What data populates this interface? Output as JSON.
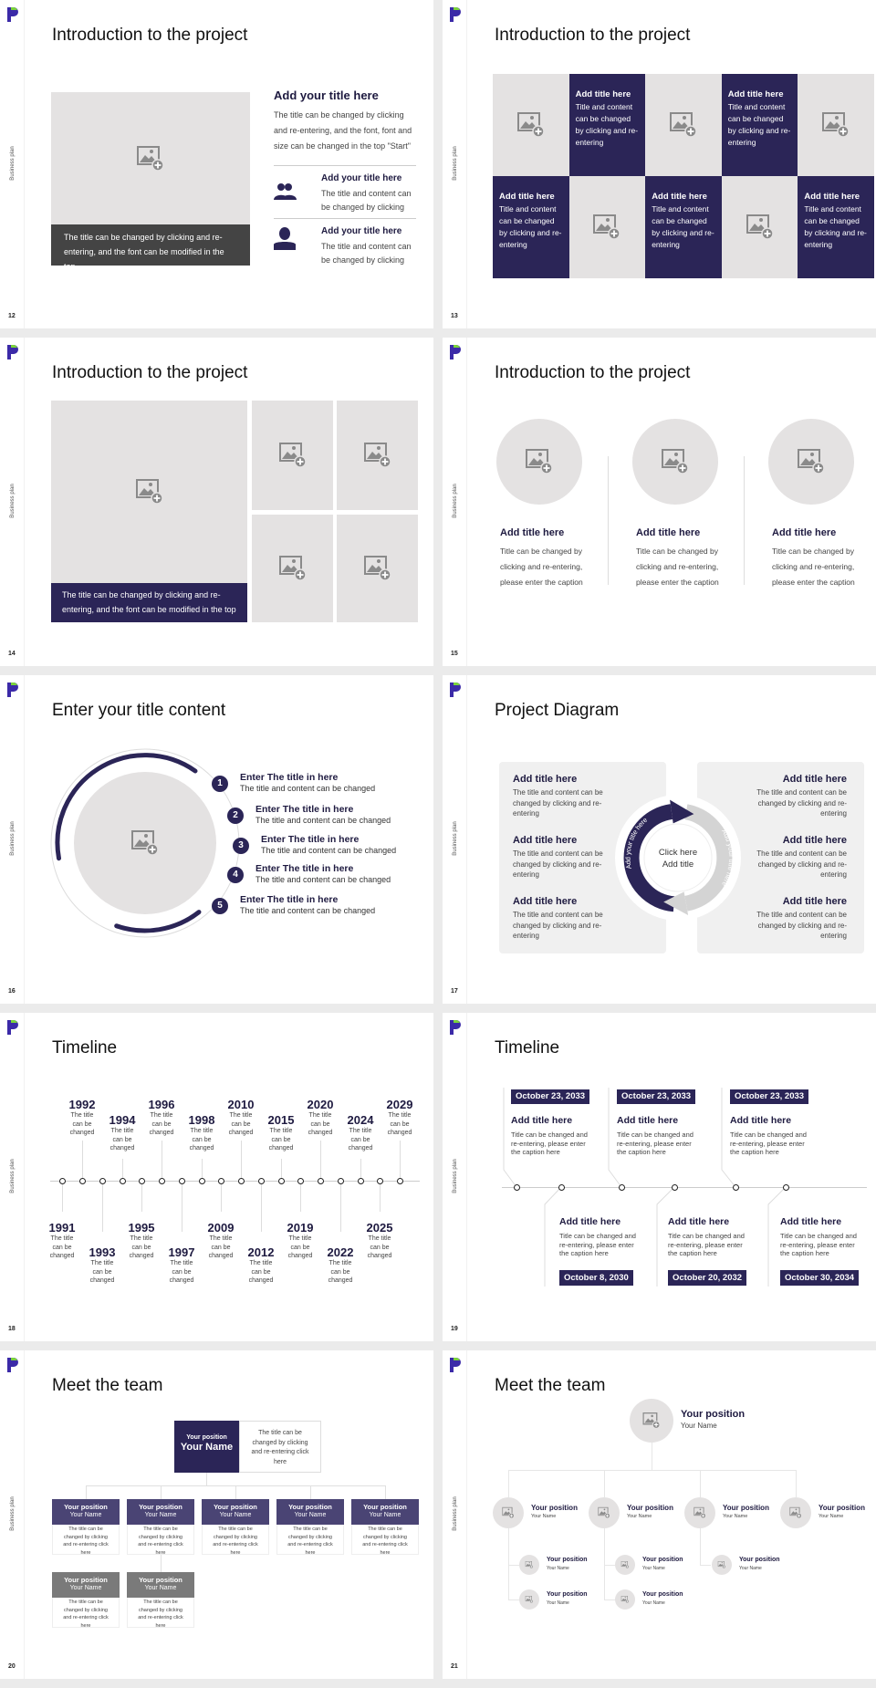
{
  "deck": {
    "side_label": "Business plan"
  },
  "colors": {
    "navy": "#2b2557",
    "placeholder_gray": "#e4e2e2",
    "card_header": "#4a4474",
    "card_header_gray": "#7a7a7a",
    "caption_dark": "#444444"
  },
  "s12": {
    "page": "12",
    "title": "Introduction to the project",
    "caption": "The title can be changed by clicking and re-entering, and the font can be modified in the top",
    "heading": "Add your title here",
    "body": "The title can be changed by clicking and re-entering, and the font, font and size can be changed in the top \"Start\"",
    "items": [
      {
        "icon": "users-icon",
        "title": "Add your title here",
        "text": "The title and content can be changed by clicking"
      },
      {
        "icon": "user-icon",
        "title": "Add your title here",
        "text": "The title and content can be changed by clicking"
      }
    ]
  },
  "s13": {
    "page": "13",
    "title": "Introduction to the project",
    "cards": [
      {
        "title": "Add title here",
        "text": "Title and content can be changed by clicking and re-entering"
      },
      {
        "title": "Add title here",
        "text": "Title and content can be changed by clicking and re-entering"
      },
      {
        "title": "Add title here",
        "text": "Title and content can be changed by clicking and re-entering"
      },
      {
        "title": "Add title here",
        "text": "Title and content can be changed by clicking and re-entering"
      },
      {
        "title": "Add title here",
        "text": "Title and content can be changed by clicking and re-entering"
      }
    ]
  },
  "s14": {
    "page": "14",
    "title": "Introduction to the project",
    "caption": "The title can be changed by clicking and re-entering, and the font can be modified in the top"
  },
  "s15": {
    "page": "15",
    "title": "Introduction to the project",
    "items": [
      {
        "title": "Add title here",
        "text": "Title can be changed by clicking and re-entering, please enter the caption"
      },
      {
        "title": "Add title here",
        "text": "Title can be changed by clicking and re-entering, please enter the caption"
      },
      {
        "title": "Add title here",
        "text": "Title can be changed by clicking and re-entering, please enter the caption"
      }
    ]
  },
  "s16": {
    "page": "16",
    "title": "Enter your title content",
    "items": [
      {
        "num": "1",
        "title": "Enter The title in here",
        "text": "The title and content can be changed"
      },
      {
        "num": "2",
        "title": "Enter The title in here",
        "text": "The title and content can be changed"
      },
      {
        "num": "3",
        "title": "Enter The title in here",
        "text": "The title and content can be changed"
      },
      {
        "num": "4",
        "title": "Enter The title in here",
        "text": "The title and content can be changed"
      },
      {
        "num": "5",
        "title": "Enter The title in here",
        "text": "The title and content can be changed"
      }
    ]
  },
  "s17": {
    "page": "17",
    "title": "Project Diagram",
    "center_line1": "Click here",
    "center_line2": "Add title",
    "arrow_left": "Add your title here",
    "arrow_right": "Add your title here",
    "left": [
      {
        "title": "Add title here",
        "text": "The title and content can be changed by clicking and re-entering"
      },
      {
        "title": "Add title here",
        "text": "The title and content can be changed by clicking and re-entering"
      },
      {
        "title": "Add title here",
        "text": "The title and content can be changed by clicking and re-entering"
      }
    ],
    "right": [
      {
        "title": "Add title here",
        "text": "The title and content can be changed by clicking and re-entering"
      },
      {
        "title": "Add title here",
        "text": "The title and content can be changed by clicking and re-entering"
      },
      {
        "title": "Add title here",
        "text": "The title and content can be changed by clicking and re-entering"
      }
    ]
  },
  "s18": {
    "page": "18",
    "title": "Timeline",
    "events": [
      {
        "year": "1991",
        "text": "The title can be changed"
      },
      {
        "year": "1992",
        "text": "The title can be changed"
      },
      {
        "year": "1993",
        "text": "The title can be changed"
      },
      {
        "year": "1994",
        "text": "The title can be changed"
      },
      {
        "year": "1995",
        "text": "The title can be changed"
      },
      {
        "year": "1996",
        "text": "The title can be changed"
      },
      {
        "year": "1997",
        "text": "The title can be changed"
      },
      {
        "year": "1998",
        "text": "The title can be changed"
      },
      {
        "year": "2009",
        "text": "The title can be changed"
      },
      {
        "year": "2010",
        "text": "The title can be changed"
      },
      {
        "year": "2012",
        "text": "The title can be changed"
      },
      {
        "year": "2015",
        "text": "The title can be changed"
      },
      {
        "year": "2019",
        "text": "The title can be changed"
      },
      {
        "year": "2020",
        "text": "The title can be changed"
      },
      {
        "year": "2022",
        "text": "The title can be changed"
      },
      {
        "year": "2024",
        "text": "The title can be changed"
      },
      {
        "year": "2025",
        "text": "The title can be changed"
      },
      {
        "year": "2029",
        "text": "The title can be changed"
      }
    ]
  },
  "s19": {
    "page": "19",
    "title": "Timeline",
    "top": [
      {
        "date": "October 23, 2033",
        "title": "Add title here",
        "text": "Title can be changed and re-entering, please enter the caption here"
      },
      {
        "date": "October 23, 2033",
        "title": "Add title here",
        "text": "Title can be changed and re-entering, please enter the caption here"
      },
      {
        "date": "October 23, 2033",
        "title": "Add title here",
        "text": "Title can be changed and re-entering, please enter the caption here"
      }
    ],
    "bottom": [
      {
        "date": "October 8, 2030",
        "title": "Add title here",
        "text": "Title can be changed and re-entering, please enter the caption here"
      },
      {
        "date": "October 20, 2032",
        "title": "Add title here",
        "text": "Title can be changed and re-entering, please enter the caption here"
      },
      {
        "date": "October 30, 2034",
        "title": "Add title here",
        "text": "Title can be changed and re-entering, please enter the caption here"
      }
    ]
  },
  "s20": {
    "page": "20",
    "title": "Meet the team",
    "lead": {
      "position": "Your position",
      "name": "Your Name",
      "text": "The title can be changed by clicking and re-entering click here"
    },
    "members": [
      {
        "position": "Your position",
        "name": "Your Name",
        "text": "The title can be changed by clicking and re-entering click here"
      },
      {
        "position": "Your position",
        "name": "Your Name",
        "text": "The title can be changed by clicking and re-entering click here"
      },
      {
        "position": "Your position",
        "name": "Your Name",
        "text": "The title can be changed by clicking and re-entering click here"
      },
      {
        "position": "Your position",
        "name": "Your Name",
        "text": "The title can be changed by clicking and re-entering click here"
      },
      {
        "position": "Your position",
        "name": "Your Name",
        "text": "The title can be changed by clicking and re-entering click here"
      },
      {
        "position": "Your position",
        "name": "Your Name",
        "text": "The title can be changed by clicking and re-entering click here"
      },
      {
        "position": "Your position",
        "name": "Your Name",
        "text": "The title can be changed by clicking and re-entering click here"
      }
    ]
  },
  "s21": {
    "page": "21",
    "title": "Meet the team",
    "lead": {
      "position": "Your position",
      "name": "Your Name"
    },
    "managers": [
      {
        "position": "Your position",
        "name": "Your Name"
      },
      {
        "position": "Your position",
        "name": "Your Name"
      },
      {
        "position": "Your position",
        "name": "Your Name"
      },
      {
        "position": "Your position",
        "name": "Your Name"
      }
    ],
    "staff": [
      {
        "position": "Your position",
        "name": "Your Name"
      },
      {
        "position": "Your position",
        "name": "Your Name"
      },
      {
        "position": "Your position",
        "name": "Your Name"
      },
      {
        "position": "Your position",
        "name": "Your Name"
      },
      {
        "position": "Your position",
        "name": "Your Name"
      }
    ]
  }
}
